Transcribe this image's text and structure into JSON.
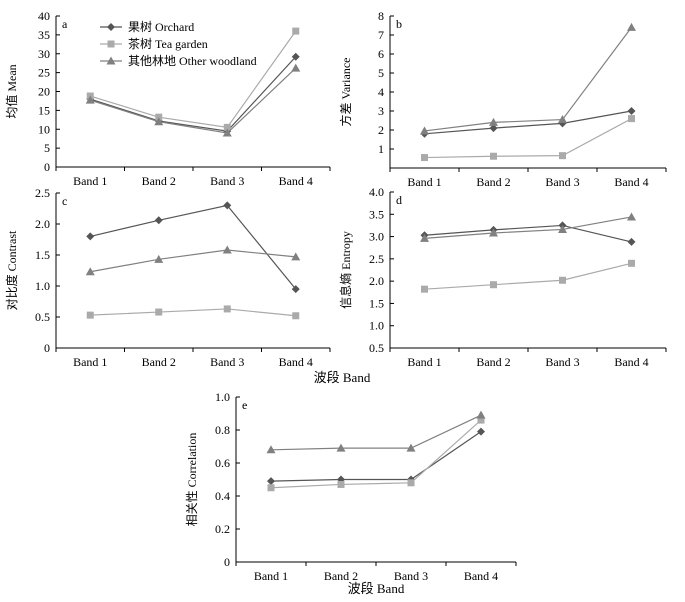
{
  "shared_xlabel": "波段 Band",
  "legend": [
    {
      "name": "果树 Orchard",
      "color": "#555555",
      "marker": "diamond"
    },
    {
      "name": "茶树 Tea garden",
      "color": "#aaaaaa",
      "marker": "square"
    },
    {
      "name": "其他林地 Other woodland",
      "color": "#808080",
      "marker": "triangle"
    }
  ],
  "chart_data": [
    {
      "id": "a",
      "type": "line",
      "panel": "a",
      "ylabel": "均值 Mean",
      "categories": [
        "Band 1",
        "Band 2",
        "Band 3",
        "Band 4"
      ],
      "ylim": [
        0,
        40
      ],
      "yticks": [
        0,
        5,
        10,
        15,
        20,
        25,
        30,
        35,
        40
      ],
      "series": [
        {
          "name": "果树 Orchard",
          "values": [
            18.0,
            12.2,
            9.5,
            29.2
          ]
        },
        {
          "name": "茶树 Tea garden",
          "values": [
            18.8,
            13.2,
            10.5,
            36.0
          ]
        },
        {
          "name": "其他林地 Other woodland",
          "values": [
            17.7,
            12.0,
            9.0,
            26.2
          ]
        }
      ]
    },
    {
      "id": "b",
      "type": "line",
      "panel": "b",
      "ylabel": "方差 Variance",
      "categories": [
        "Band 1",
        "Band 2",
        "Band 3",
        "Band 4"
      ],
      "ylim": [
        0,
        8
      ],
      "yticks": [
        1,
        2,
        3,
        4,
        5,
        6,
        7,
        8
      ],
      "series": [
        {
          "name": "果树 Orchard",
          "values": [
            1.8,
            2.1,
            2.35,
            3.0
          ]
        },
        {
          "name": "茶树 Tea garden",
          "values": [
            0.55,
            0.62,
            0.65,
            2.6
          ]
        },
        {
          "name": "其他林地 Other woodland",
          "values": [
            1.95,
            2.4,
            2.55,
            7.4
          ]
        }
      ]
    },
    {
      "id": "c",
      "type": "line",
      "panel": "c",
      "ylabel": "对比度 Contrast",
      "categories": [
        "Band 1",
        "Band 2",
        "Band 3",
        "Band 4"
      ],
      "ylim": [
        0,
        2.5
      ],
      "yticks": [
        0,
        0.5,
        1.0,
        1.5,
        2.0,
        2.5
      ],
      "ytick_labels": [
        "0",
        "0.5",
        "1.0",
        "1.5",
        "2.0",
        "2.5"
      ],
      "series": [
        {
          "name": "果树 Orchard",
          "values": [
            1.8,
            2.06,
            2.3,
            0.95
          ]
        },
        {
          "name": "茶树 Tea garden",
          "values": [
            0.53,
            0.58,
            0.63,
            0.52
          ]
        },
        {
          "name": "其他林地 Other woodland",
          "values": [
            1.23,
            1.43,
            1.58,
            1.47
          ]
        }
      ]
    },
    {
      "id": "d",
      "type": "line",
      "panel": "d",
      "ylabel": "信息熵 Entropy",
      "categories": [
        "Band 1",
        "Band 2",
        "Band 3",
        "Band 4"
      ],
      "ylim": [
        0.5,
        4.0
      ],
      "yticks": [
        0.5,
        1.0,
        1.5,
        2.0,
        2.5,
        3.0,
        3.5,
        4.0
      ],
      "ytick_labels": [
        "0.5",
        "1.0",
        "1.5",
        "2.0",
        "2.5",
        "3.0",
        "3.5",
        "4.0"
      ],
      "series": [
        {
          "name": "果树 Orchard",
          "values": [
            3.03,
            3.15,
            3.25,
            2.88
          ]
        },
        {
          "name": "茶树 Tea garden",
          "values": [
            1.82,
            1.92,
            2.02,
            2.4
          ]
        },
        {
          "name": "其他林地 Other woodland",
          "values": [
            2.96,
            3.08,
            3.16,
            3.44
          ]
        }
      ]
    },
    {
      "id": "e",
      "type": "line",
      "panel": "e",
      "ylabel": "相关性 Correlation",
      "xlabel": "波段 Band",
      "categories": [
        "Band 1",
        "Band 2",
        "Band 3",
        "Band 4"
      ],
      "ylim": [
        0,
        1.0
      ],
      "yticks": [
        0,
        0.2,
        0.4,
        0.6,
        0.8,
        1.0
      ],
      "ytick_labels": [
        "0",
        "0.2",
        "0.4",
        "0.6",
        "0.8",
        "1.0"
      ],
      "series": [
        {
          "name": "果树 Orchard",
          "values": [
            0.49,
            0.5,
            0.5,
            0.79
          ]
        },
        {
          "name": "茶树 Tea garden",
          "values": [
            0.45,
            0.47,
            0.48,
            0.86
          ]
        },
        {
          "name": "其他林地 Other woodland",
          "values": [
            0.68,
            0.69,
            0.69,
            0.89
          ]
        }
      ]
    }
  ]
}
